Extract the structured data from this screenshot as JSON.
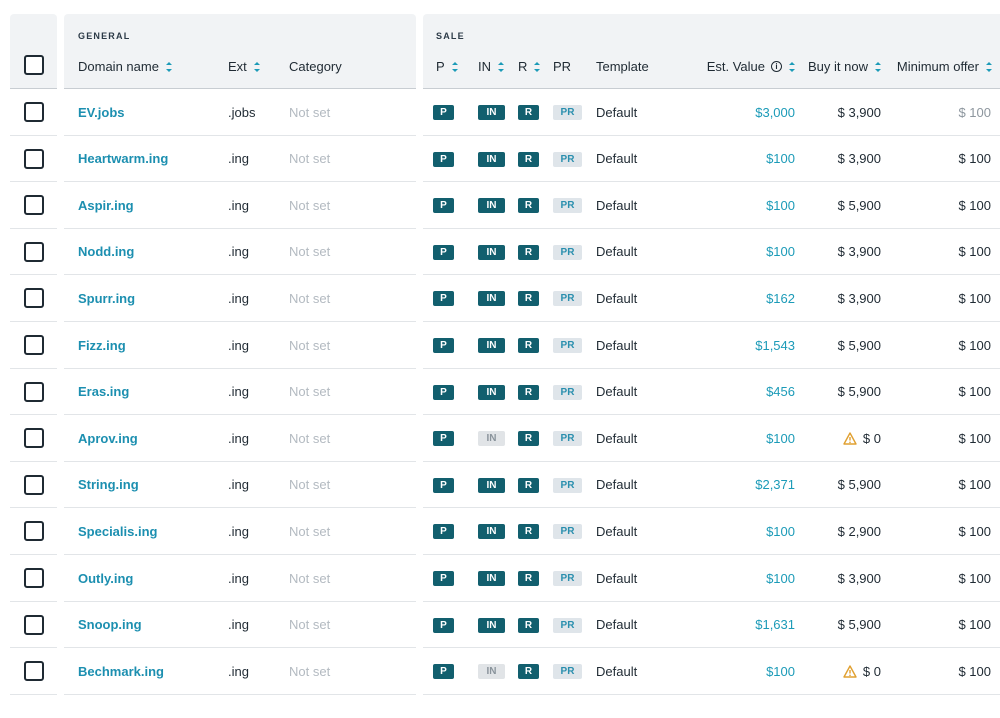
{
  "groups": {
    "general": "GENERAL",
    "sale": "SALE"
  },
  "columns": {
    "domain": "Domain name",
    "ext": "Ext",
    "category": "Category",
    "p": "P",
    "in": "IN",
    "r": "R",
    "pr": "PR",
    "template": "Template",
    "est_value": "Est. Value",
    "buy_now": "Buy it now",
    "min_offer": "Minimum offer"
  },
  "badges": {
    "p": "P",
    "in": "IN",
    "r": "R",
    "pr": "PR"
  },
  "colors": {
    "accent": "#1c9bb8",
    "badge_dark": "#125f6e",
    "warning": "#e0a030"
  },
  "rows": [
    {
      "domain": "EV.jobs",
      "ext": ".jobs",
      "category": "Not set",
      "in_active": true,
      "template": "Default",
      "est_value": "$3,000",
      "buy_now": "$ 3,900",
      "buy_now_warning": false,
      "min_offer": "$ 100",
      "min_offer_muted": true
    },
    {
      "domain": "Heartwarm.ing",
      "ext": ".ing",
      "category": "Not set",
      "in_active": true,
      "template": "Default",
      "est_value": "$100",
      "buy_now": "$ 3,900",
      "buy_now_warning": false,
      "min_offer": "$ 100",
      "min_offer_muted": false
    },
    {
      "domain": "Aspir.ing",
      "ext": ".ing",
      "category": "Not set",
      "in_active": true,
      "template": "Default",
      "est_value": "$100",
      "buy_now": "$ 5,900",
      "buy_now_warning": false,
      "min_offer": "$ 100",
      "min_offer_muted": false
    },
    {
      "domain": "Nodd.ing",
      "ext": ".ing",
      "category": "Not set",
      "in_active": true,
      "template": "Default",
      "est_value": "$100",
      "buy_now": "$ 3,900",
      "buy_now_warning": false,
      "min_offer": "$ 100",
      "min_offer_muted": false
    },
    {
      "domain": "Spurr.ing",
      "ext": ".ing",
      "category": "Not set",
      "in_active": true,
      "template": "Default",
      "est_value": "$162",
      "buy_now": "$ 3,900",
      "buy_now_warning": false,
      "min_offer": "$ 100",
      "min_offer_muted": false
    },
    {
      "domain": "Fizz.ing",
      "ext": ".ing",
      "category": "Not set",
      "in_active": true,
      "template": "Default",
      "est_value": "$1,543",
      "buy_now": "$ 5,900",
      "buy_now_warning": false,
      "min_offer": "$ 100",
      "min_offer_muted": false
    },
    {
      "domain": "Eras.ing",
      "ext": ".ing",
      "category": "Not set",
      "in_active": true,
      "template": "Default",
      "est_value": "$456",
      "buy_now": "$ 5,900",
      "buy_now_warning": false,
      "min_offer": "$ 100",
      "min_offer_muted": false
    },
    {
      "domain": "Aprov.ing",
      "ext": ".ing",
      "category": "Not set",
      "in_active": false,
      "template": "Default",
      "est_value": "$100",
      "buy_now": "$ 0",
      "buy_now_warning": true,
      "min_offer": "$ 100",
      "min_offer_muted": false
    },
    {
      "domain": "String.ing",
      "ext": ".ing",
      "category": "Not set",
      "in_active": true,
      "template": "Default",
      "est_value": "$2,371",
      "buy_now": "$ 5,900",
      "buy_now_warning": false,
      "min_offer": "$ 100",
      "min_offer_muted": false
    },
    {
      "domain": "Specialis.ing",
      "ext": ".ing",
      "category": "Not set",
      "in_active": true,
      "template": "Default",
      "est_value": "$100",
      "buy_now": "$ 2,900",
      "buy_now_warning": false,
      "min_offer": "$ 100",
      "min_offer_muted": false
    },
    {
      "domain": "Outly.ing",
      "ext": ".ing",
      "category": "Not set",
      "in_active": true,
      "template": "Default",
      "est_value": "$100",
      "buy_now": "$ 3,900",
      "buy_now_warning": false,
      "min_offer": "$ 100",
      "min_offer_muted": false
    },
    {
      "domain": "Snoop.ing",
      "ext": ".ing",
      "category": "Not set",
      "in_active": true,
      "template": "Default",
      "est_value": "$1,631",
      "buy_now": "$ 5,900",
      "buy_now_warning": false,
      "min_offer": "$ 100",
      "min_offer_muted": false
    },
    {
      "domain": "Bechmark.ing",
      "ext": ".ing",
      "category": "Not set",
      "in_active": false,
      "template": "Default",
      "est_value": "$100",
      "buy_now": "$ 0",
      "buy_now_warning": true,
      "min_offer": "$ 100",
      "min_offer_muted": false
    }
  ]
}
